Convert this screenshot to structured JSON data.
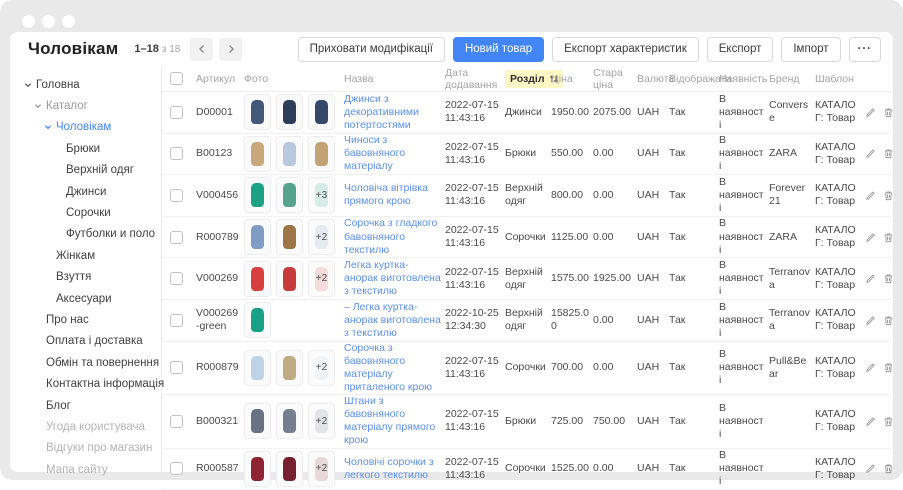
{
  "colors": {
    "accent": "#4285f4",
    "link": "#5b8ff2",
    "sort_highlight": "#fbf8c6"
  },
  "window": {
    "title": "Чоловікам",
    "pagination_range": "1–18",
    "pagination_total": "з 18"
  },
  "toolbar": {
    "hide_modifications": "Приховати модифікації",
    "new_product": "Новий товар",
    "export_characteristics": "Експорт характеристик",
    "export": "Експорт",
    "import": "Імпорт",
    "more": "···"
  },
  "sidebar": {
    "items": [
      {
        "label": "Головна",
        "level": 0,
        "chevron": true,
        "state": "default"
      },
      {
        "label": "Каталог",
        "level": 1,
        "chevron": true,
        "state": "muted"
      },
      {
        "label": "Чоловікам",
        "level": 2,
        "chevron": true,
        "state": "active"
      },
      {
        "label": "Брюки",
        "level": 3,
        "chevron": false,
        "state": "default"
      },
      {
        "label": "Верхній одяг",
        "level": 3,
        "chevron": false,
        "state": "default"
      },
      {
        "label": "Джинси",
        "level": 3,
        "chevron": false,
        "state": "default"
      },
      {
        "label": "Сорочки",
        "level": 3,
        "chevron": false,
        "state": "default"
      },
      {
        "label": "Футболки и поло",
        "level": 3,
        "chevron": false,
        "state": "default"
      },
      {
        "label": "Жінкам",
        "level": 2,
        "chevron": false,
        "state": "default"
      },
      {
        "label": "Взуття",
        "level": 2,
        "chevron": false,
        "state": "default"
      },
      {
        "label": "Аксесуари",
        "level": 2,
        "chevron": false,
        "state": "default"
      },
      {
        "label": "Про нас",
        "level": 1,
        "chevron": false,
        "state": "default"
      },
      {
        "label": "Оплата і доставка",
        "level": 1,
        "chevron": false,
        "state": "default"
      },
      {
        "label": "Обмін та повернення",
        "level": 1,
        "chevron": false,
        "state": "default"
      },
      {
        "label": "Контактна інформація",
        "level": 1,
        "chevron": false,
        "state": "default"
      },
      {
        "label": "Блог",
        "level": 1,
        "chevron": false,
        "state": "default"
      },
      {
        "label": "Угода користувача",
        "level": 1,
        "chevron": false,
        "state": "disabled"
      },
      {
        "label": "Відгуки про магазин",
        "level": 1,
        "chevron": false,
        "state": "disabled"
      },
      {
        "label": "Мапа сайту",
        "level": 1,
        "chevron": false,
        "state": "disabled"
      }
    ]
  },
  "table": {
    "columns": [
      "Артикул",
      "Фото",
      "Назва",
      "Дата додавання",
      "Розділ",
      "Ціна",
      "Стара ціна",
      "Валюта",
      "Відображати",
      "Наявність",
      "Бренд",
      "Шаблон"
    ],
    "sort": {
      "column": "Розділ"
    },
    "rows": [
      {
        "article": "D00001",
        "thumbs": [
          {
            "color": "#44597a"
          },
          {
            "color": "#2e3e59"
          },
          {
            "color": "#35476a"
          }
        ],
        "name": "Джинси з декоративними потертостями",
        "date": "2022-07-15 11:43:16",
        "section": "Джинси",
        "price": "1950.00",
        "old_price": "2075.00",
        "currency": "UAH",
        "display": "Так",
        "availability": "В наявності",
        "brand": "Converse",
        "template": "КАТАЛОГ: Товар"
      },
      {
        "article": "B00123",
        "thumbs": [
          {
            "color": "#c8a77a"
          },
          {
            "color": "#b9c9dd"
          },
          {
            "color": "#c3a273"
          }
        ],
        "name": "Чиноси з бавовняного матеріалу",
        "date": "2022-07-15 11:43:16",
        "section": "Брюки",
        "price": "550.00",
        "old_price": "0.00",
        "currency": "UAH",
        "display": "Так",
        "availability": "В наявності",
        "brand": "ZARA",
        "template": "КАТАЛОГ: Товар"
      },
      {
        "article": "V000456",
        "thumbs": [
          {
            "color": "#1ba183"
          },
          {
            "color": "#55a38d"
          },
          {
            "badge": "+3",
            "color": "#1ba183"
          }
        ],
        "name": "Чоловіча вітрівка прямого крою",
        "date": "2022-07-15 11:43:16",
        "section": "Верхній одяг",
        "price": "800.00",
        "old_price": "0.00",
        "currency": "UAH",
        "display": "Так",
        "availability": "В наявності",
        "brand": "Forever 21",
        "template": "КАТАЛОГ: Товар"
      },
      {
        "article": "R000789",
        "thumbs": [
          {
            "color": "#7f9dc4"
          },
          {
            "color": "#9d7446"
          },
          {
            "badge": "+2",
            "color": "#7f9dc4"
          }
        ],
        "name": "Сорочка з гладкого бавовняного текстилю",
        "date": "2022-07-15 11:43:16",
        "section": "Сорочки",
        "price": "1125.00",
        "old_price": "0.00",
        "currency": "UAH",
        "display": "Так",
        "availability": "В наявності",
        "brand": "ZARA",
        "template": "КАТАЛОГ: Товар"
      },
      {
        "article": "V000269",
        "thumbs": [
          {
            "color": "#d84040"
          },
          {
            "color": "#c63b3b"
          },
          {
            "badge": "+2",
            "color": "#d84040"
          }
        ],
        "name": "Легка куртка-анорак виготовлена з текстилю",
        "date": "2022-07-15 11:43:16",
        "section": "Верхній одяг",
        "price": "1575.00",
        "old_price": "1925.00",
        "currency": "UAH",
        "display": "Так",
        "availability": "В наявності",
        "brand": "Terranova",
        "template": "КАТАЛОГ: Товар"
      },
      {
        "article": "V000269-green",
        "thumbs": [
          {
            "color": "#17a287"
          }
        ],
        "name": "– Легка куртка-анорак виготовлена з текстилю",
        "date": "2022-10-25 12:34:30",
        "section": "Верхній одяг",
        "price": "15825.00",
        "old_price": "0.00",
        "currency": "UAH",
        "display": "Так",
        "availability": "В наявності",
        "brand": "Terranova",
        "template": "КАТАЛОГ: Товар"
      },
      {
        "article": "R000879",
        "thumbs": [
          {
            "color": "#bed3e6"
          },
          {
            "color": "#c0ab85"
          },
          {
            "badge": "+2",
            "color": "#bed3e6"
          }
        ],
        "name": "Сорочка з бавовняного матеріалу приталеного крою",
        "date": "2022-07-15 11:43:16",
        "section": "Сорочки",
        "price": "700.00",
        "old_price": "0.00",
        "currency": "UAH",
        "display": "Так",
        "availability": "В наявності",
        "brand": "Pull&Bear",
        "template": "КАТАЛОГ: Товар"
      },
      {
        "article": "B000321",
        "thumbs": [
          {
            "color": "#697283"
          },
          {
            "color": "#757e8e"
          },
          {
            "badge": "+2",
            "color": "#697283"
          }
        ],
        "name": "Штани з бавовняного матеріалу прямого крою",
        "date": "2022-07-15 11:43:16",
        "section": "Брюки",
        "price": "725.00",
        "old_price": "750.00",
        "currency": "UAH",
        "display": "Так",
        "availability": "В наявності",
        "brand": "",
        "template": "КАТАЛОГ: Товар"
      },
      {
        "article": "R000587",
        "thumbs": [
          {
            "color": "#8f2433"
          },
          {
            "color": "#772030"
          },
          {
            "badge": "+2",
            "color": "#8f2433"
          }
        ],
        "name": "Чоловічі сорочки з легкого текстилю",
        "date": "2022-07-15 11:43:16",
        "section": "Сорочки",
        "price": "1525.00",
        "old_price": "0.00",
        "currency": "UAH",
        "display": "Так",
        "availability": "В наявності",
        "brand": "",
        "template": "КАТАЛОГ: Товар"
      }
    ]
  }
}
